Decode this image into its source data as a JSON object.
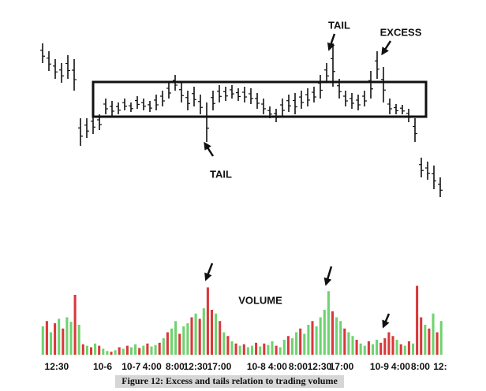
{
  "chart_data": [
    {
      "type": "range-bar",
      "high": [
        195,
        185,
        175,
        170,
        180,
        175,
        100,
        100,
        105,
        105,
        125,
        122,
        120,
        125,
        120,
        128,
        125,
        122,
        130,
        135,
        145,
        155,
        145,
        135,
        140,
        130,
        120,
        135,
        142,
        140,
        142,
        138,
        140,
        138,
        132,
        125,
        115,
        112,
        125,
        130,
        132,
        135,
        138,
        140,
        155,
        170,
        195,
        150,
        135,
        132,
        130,
        135,
        160,
        185,
        165,
        125,
        118,
        117,
        112,
        100,
        50,
        45,
        40,
        25
      ],
      "low": [
        170,
        160,
        150,
        145,
        150,
        135,
        65,
        75,
        80,
        85,
        105,
        102,
        105,
        110,
        108,
        112,
        110,
        108,
        110,
        115,
        125,
        135,
        120,
        110,
        115,
        105,
        70,
        110,
        120,
        122,
        125,
        122,
        120,
        118,
        112,
        105,
        100,
        95,
        102,
        108,
        105,
        112,
        115,
        120,
        125,
        145,
        140,
        125,
        115,
        112,
        110,
        115,
        125,
        150,
        120,
        105,
        105,
        105,
        95,
        70,
        25,
        22,
        10,
        0
      ],
      "ylim": [
        0,
        210
      ],
      "annotations": [
        "TAIL",
        "EXCESS",
        "TAIL"
      ]
    },
    {
      "type": "bar",
      "title": "VOLUME",
      "values": [
        38,
        45,
        30,
        42,
        48,
        35,
        50,
        44,
        80,
        40,
        14,
        12,
        10,
        15,
        12,
        8,
        5,
        4,
        6,
        10,
        8,
        12,
        10,
        14,
        9,
        12,
        15,
        11,
        13,
        16,
        22,
        30,
        35,
        45,
        28,
        38,
        42,
        50,
        55,
        48,
        62,
        90,
        60,
        55,
        45,
        30,
        25,
        18,
        15,
        12,
        14,
        10,
        12,
        16,
        11,
        15,
        13,
        18,
        12,
        10,
        20,
        25,
        22,
        30,
        35,
        28,
        40,
        45,
        38,
        50,
        60,
        85,
        58,
        50,
        45,
        35,
        30,
        25,
        20,
        15,
        12,
        18,
        14,
        20,
        16,
        22,
        30,
        25,
        20,
        14,
        12,
        18,
        15,
        92,
        50,
        40,
        35,
        55,
        30,
        45
      ],
      "colors": [
        "#6ed36e",
        "#d9383a",
        "#6ed36e",
        "#d9383a",
        "#6ed36e",
        "#d9383a",
        "#6ed36e",
        "#6ed36e",
        "#d9383a",
        "#6ed36e",
        "#d9383a",
        "#6ed36e",
        "#d9383a",
        "#6ed36e",
        "#d9383a",
        "#6ed36e",
        "#6ed36e",
        "#d9383a",
        "#6ed36e",
        "#d9383a",
        "#6ed36e",
        "#d9383a",
        "#6ed36e",
        "#6ed36e",
        "#d9383a",
        "#6ed36e",
        "#d9383a",
        "#6ed36e",
        "#6ed36e",
        "#d9383a",
        "#6ed36e",
        "#d9383a",
        "#6ed36e",
        "#6ed36e",
        "#d9383a",
        "#6ed36e",
        "#6ed36e",
        "#d9383a",
        "#6ed36e",
        "#d9383a",
        "#6ed36e",
        "#d9383a",
        "#d9383a",
        "#6ed36e",
        "#d9383a",
        "#6ed36e",
        "#d9383a",
        "#6ed36e",
        "#d9383a",
        "#6ed36e",
        "#d9383a",
        "#6ed36e",
        "#6ed36e",
        "#d9383a",
        "#6ed36e",
        "#d9383a",
        "#6ed36e",
        "#6ed36e",
        "#d9383a",
        "#6ed36e",
        "#6ed36e",
        "#d9383a",
        "#6ed36e",
        "#6ed36e",
        "#d9383a",
        "#6ed36e",
        "#6ed36e",
        "#d9383a",
        "#6ed36e",
        "#6ed36e",
        "#6ed36e",
        "#6ed36e",
        "#d9383a",
        "#6ed36e",
        "#6ed36e",
        "#d9383a",
        "#6ed36e",
        "#6ed36e",
        "#d9383a",
        "#6ed36e",
        "#6ed36e",
        "#d9383a",
        "#6ed36e",
        "#6ed36e",
        "#d9383a",
        "#d9383a",
        "#d9383a",
        "#d9383a",
        "#6ed36e",
        "#d9383a",
        "#6ed36e",
        "#d9383a",
        "#6ed36e",
        "#d9383a",
        "#d9383a",
        "#6ed36e",
        "#d9383a",
        "#6ed36e",
        "#d9383a",
        "#6ed36e"
      ],
      "ylim": [
        0,
        100
      ],
      "xlim": [
        0,
        100
      ],
      "xticks": [
        {
          "value": 3.9,
          "label": "12:30"
        },
        {
          "value": 15.3,
          "label": "10-6"
        },
        {
          "value": 22.4,
          "label": "10-7"
        },
        {
          "value": 27.6,
          "label": "4:00"
        },
        {
          "value": 33.3,
          "label": "8:00"
        },
        {
          "value": 38.4,
          "label": "12:30"
        },
        {
          "value": 44.3,
          "label": "17:00"
        },
        {
          "value": 53.5,
          "label": "10-8"
        },
        {
          "value": 58.8,
          "label": "4:00"
        },
        {
          "value": 63.9,
          "label": "8:00"
        },
        {
          "value": 69.2,
          "label": "12:30"
        },
        {
          "value": 74.7,
          "label": "17:00"
        },
        {
          "value": 84.1,
          "label": "10-9"
        },
        {
          "value": 89.4,
          "label": "4:00"
        },
        {
          "value": 94.3,
          "label": "8:00"
        },
        {
          "value": 99.2,
          "label": "12:"
        }
      ]
    }
  ],
  "caption": "Figure 12: Excess and tails relation to trading volume"
}
